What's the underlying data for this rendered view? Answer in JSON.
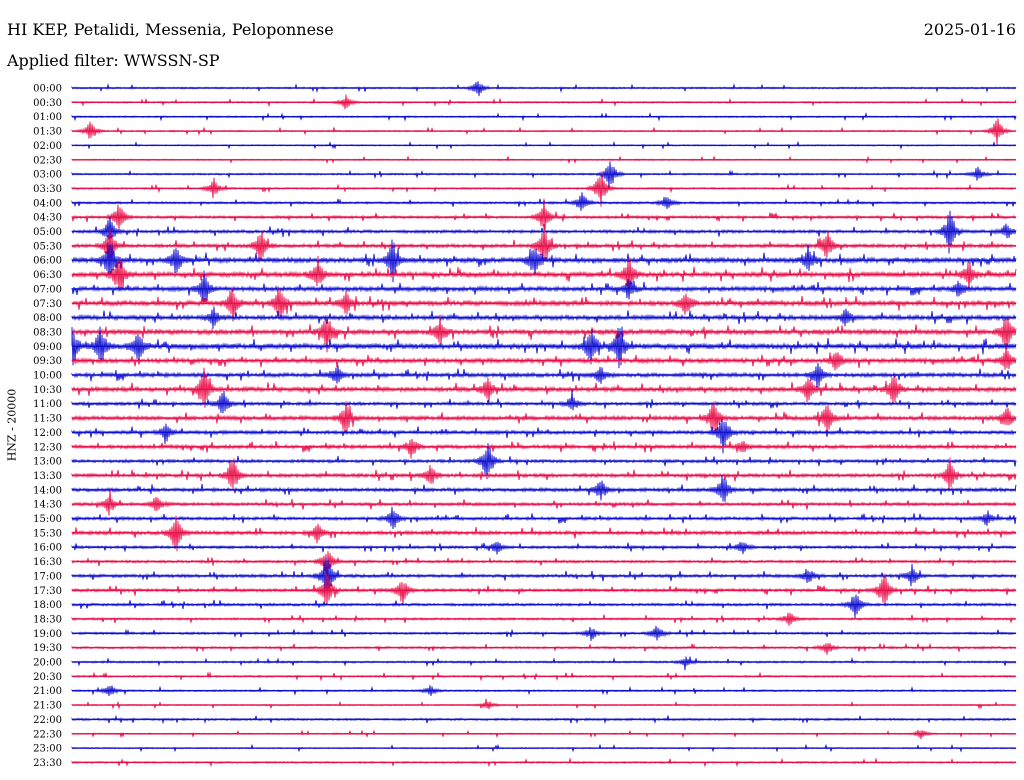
{
  "header": {
    "station": "HI KEP, Petalidi, Messenia, Peloponnese",
    "date": "2025-01-16",
    "filter": "Applied filter: WWSSN-SP"
  },
  "chart_data": {
    "type": "line",
    "title": "HI KEP, Petalidi, Messenia, Peloponnese",
    "subtitle": "Applied filter: WWSSN-SP",
    "date": "2025-01-16",
    "ylabel": "HNZ - 20000",
    "xlabel": "",
    "row_duration_minutes": 30,
    "colors": [
      "#1010d0",
      "#e8104a"
    ],
    "grid": false,
    "rows": [
      {
        "label": "00:00",
        "level": 0.2,
        "events": [
          {
            "at": 0.43,
            "amp": 0.5
          }
        ]
      },
      {
        "label": "00:30",
        "level": 0.15,
        "events": [
          {
            "at": 0.29,
            "amp": 0.4
          }
        ]
      },
      {
        "label": "01:00",
        "level": 0.15,
        "events": []
      },
      {
        "label": "01:30",
        "level": 0.15,
        "events": [
          {
            "at": 0.02,
            "amp": 0.6
          },
          {
            "at": 0.98,
            "amp": 0.8
          }
        ]
      },
      {
        "label": "02:00",
        "level": 0.1,
        "events": []
      },
      {
        "label": "02:30",
        "level": 0.1,
        "events": []
      },
      {
        "label": "03:00",
        "level": 0.2,
        "events": [
          {
            "at": 0.57,
            "amp": 0.9
          },
          {
            "at": 0.96,
            "amp": 0.4
          }
        ]
      },
      {
        "label": "03:30",
        "level": 0.2,
        "events": [
          {
            "at": 0.15,
            "amp": 0.6
          },
          {
            "at": 0.56,
            "amp": 1.2
          }
        ]
      },
      {
        "label": "04:00",
        "level": 0.3,
        "events": [
          {
            "at": 0.54,
            "amp": 0.7
          },
          {
            "at": 0.63,
            "amp": 0.5
          }
        ]
      },
      {
        "label": "04:30",
        "level": 0.4,
        "events": [
          {
            "at": 0.05,
            "amp": 0.9
          },
          {
            "at": 0.5,
            "amp": 0.9
          }
        ]
      },
      {
        "label": "05:00",
        "level": 0.5,
        "events": [
          {
            "at": 0.04,
            "amp": 0.8
          },
          {
            "at": 0.93,
            "amp": 1.3
          },
          {
            "at": 0.99,
            "amp": 0.5
          }
        ]
      },
      {
        "label": "05:30",
        "level": 0.6,
        "events": [
          {
            "at": 0.04,
            "amp": 1.0
          },
          {
            "at": 0.2,
            "amp": 1.0
          },
          {
            "at": 0.5,
            "amp": 1.2
          },
          {
            "at": 0.8,
            "amp": 0.8
          }
        ]
      },
      {
        "label": "06:00",
        "level": 0.9,
        "events": [
          {
            "at": 0.04,
            "amp": 1.3
          },
          {
            "at": 0.11,
            "amp": 0.8
          },
          {
            "at": 0.34,
            "amp": 1.3
          },
          {
            "at": 0.49,
            "amp": 1.0
          },
          {
            "at": 0.78,
            "amp": 0.7
          }
        ]
      },
      {
        "label": "06:30",
        "level": 0.9,
        "events": [
          {
            "at": 0.05,
            "amp": 1.2
          },
          {
            "at": 0.26,
            "amp": 1.0
          },
          {
            "at": 0.59,
            "amp": 1.0
          },
          {
            "at": 0.95,
            "amp": 0.8
          }
        ]
      },
      {
        "label": "07:00",
        "level": 0.8,
        "events": [
          {
            "at": 0.14,
            "amp": 0.9
          },
          {
            "at": 0.59,
            "amp": 0.6
          },
          {
            "at": 0.94,
            "amp": 0.5
          }
        ]
      },
      {
        "label": "07:30",
        "level": 0.9,
        "events": [
          {
            "at": 0.17,
            "amp": 1.0
          },
          {
            "at": 0.22,
            "amp": 1.1
          },
          {
            "at": 0.29,
            "amp": 0.7
          },
          {
            "at": 0.65,
            "amp": 0.8
          }
        ]
      },
      {
        "label": "08:00",
        "level": 0.8,
        "events": [
          {
            "at": 0.15,
            "amp": 0.6
          },
          {
            "at": 0.82,
            "amp": 0.5
          }
        ]
      },
      {
        "label": "08:30",
        "level": 0.9,
        "events": [
          {
            "at": 0.27,
            "amp": 1.0
          },
          {
            "at": 0.39,
            "amp": 0.8
          },
          {
            "at": 0.99,
            "amp": 1.0
          }
        ]
      },
      {
        "label": "09:00",
        "level": 1.0,
        "events": [
          {
            "at": 0.0,
            "amp": 1.3
          },
          {
            "at": 0.03,
            "amp": 1.2
          },
          {
            "at": 0.07,
            "amp": 1.0
          },
          {
            "at": 0.55,
            "amp": 1.2
          },
          {
            "at": 0.58,
            "amp": 1.3
          }
        ]
      },
      {
        "label": "09:30",
        "level": 0.8,
        "events": [
          {
            "at": 0.81,
            "amp": 0.6
          },
          {
            "at": 0.99,
            "amp": 0.7
          }
        ]
      },
      {
        "label": "10:00",
        "level": 0.7,
        "events": [
          {
            "at": 0.28,
            "amp": 0.6
          },
          {
            "at": 0.56,
            "amp": 0.5
          },
          {
            "at": 0.79,
            "amp": 0.8
          }
        ]
      },
      {
        "label": "10:30",
        "level": 0.8,
        "events": [
          {
            "at": 0.14,
            "amp": 1.2
          },
          {
            "at": 0.44,
            "amp": 0.7
          },
          {
            "at": 0.78,
            "amp": 0.8
          },
          {
            "at": 0.87,
            "amp": 1.0
          }
        ]
      },
      {
        "label": "11:00",
        "level": 0.5,
        "events": [
          {
            "at": 0.16,
            "amp": 0.8
          },
          {
            "at": 0.53,
            "amp": 0.5
          }
        ]
      },
      {
        "label": "11:30",
        "level": 0.7,
        "events": [
          {
            "at": 0.29,
            "amp": 1.0
          },
          {
            "at": 0.68,
            "amp": 1.2
          },
          {
            "at": 0.8,
            "amp": 1.1
          },
          {
            "at": 0.99,
            "amp": 0.7
          }
        ]
      },
      {
        "label": "12:00",
        "level": 0.6,
        "events": [
          {
            "at": 0.1,
            "amp": 0.5
          },
          {
            "at": 0.69,
            "amp": 1.1
          }
        ]
      },
      {
        "label": "12:30",
        "level": 0.6,
        "events": [
          {
            "at": 0.36,
            "amp": 0.7
          },
          {
            "at": 0.71,
            "amp": 0.4
          }
        ]
      },
      {
        "label": "13:00",
        "level": 0.5,
        "events": [
          {
            "at": 0.44,
            "amp": 1.3
          }
        ]
      },
      {
        "label": "13:30",
        "level": 0.6,
        "events": [
          {
            "at": 0.17,
            "amp": 1.2
          },
          {
            "at": 0.38,
            "amp": 0.6
          },
          {
            "at": 0.93,
            "amp": 0.9
          }
        ]
      },
      {
        "label": "14:00",
        "level": 0.6,
        "events": [
          {
            "at": 0.56,
            "amp": 0.7
          },
          {
            "at": 0.69,
            "amp": 1.0
          }
        ]
      },
      {
        "label": "14:30",
        "level": 0.5,
        "events": [
          {
            "at": 0.04,
            "amp": 0.6
          },
          {
            "at": 0.09,
            "amp": 0.5
          }
        ]
      },
      {
        "label": "15:00",
        "level": 0.5,
        "events": [
          {
            "at": 0.34,
            "amp": 0.7
          },
          {
            "at": 0.97,
            "amp": 0.4
          }
        ]
      },
      {
        "label": "15:30",
        "level": 0.6,
        "events": [
          {
            "at": 0.11,
            "amp": 1.2
          },
          {
            "at": 0.26,
            "amp": 0.6
          }
        ]
      },
      {
        "label": "16:00",
        "level": 0.4,
        "events": [
          {
            "at": 0.45,
            "amp": 0.4
          },
          {
            "at": 0.71,
            "amp": 0.4
          }
        ]
      },
      {
        "label": "16:30",
        "level": 0.4,
        "events": [
          {
            "at": 0.27,
            "amp": 0.8
          }
        ]
      },
      {
        "label": "17:00",
        "level": 0.5,
        "events": [
          {
            "at": 0.27,
            "amp": 1.4
          },
          {
            "at": 0.78,
            "amp": 0.5
          },
          {
            "at": 0.89,
            "amp": 0.6
          }
        ]
      },
      {
        "label": "17:30",
        "level": 0.5,
        "events": [
          {
            "at": 0.27,
            "amp": 1.0
          },
          {
            "at": 0.35,
            "amp": 0.8
          },
          {
            "at": 0.86,
            "amp": 1.1
          }
        ]
      },
      {
        "label": "18:00",
        "level": 0.4,
        "events": [
          {
            "at": 0.83,
            "amp": 0.8
          }
        ]
      },
      {
        "label": "18:30",
        "level": 0.3,
        "events": [
          {
            "at": 0.76,
            "amp": 0.4
          }
        ]
      },
      {
        "label": "19:00",
        "level": 0.3,
        "events": [
          {
            "at": 0.55,
            "amp": 0.4
          },
          {
            "at": 0.62,
            "amp": 0.5
          }
        ]
      },
      {
        "label": "19:30",
        "level": 0.3,
        "events": [
          {
            "at": 0.8,
            "amp": 0.4
          }
        ]
      },
      {
        "label": "20:00",
        "level": 0.25,
        "events": [
          {
            "at": 0.65,
            "amp": 0.3
          }
        ]
      },
      {
        "label": "20:30",
        "level": 0.2,
        "events": []
      },
      {
        "label": "21:00",
        "level": 0.2,
        "events": [
          {
            "at": 0.04,
            "amp": 0.4
          },
          {
            "at": 0.38,
            "amp": 0.3
          }
        ]
      },
      {
        "label": "21:30",
        "level": 0.1,
        "events": [
          {
            "at": 0.44,
            "amp": 0.3
          }
        ]
      },
      {
        "label": "22:00",
        "level": 0.3,
        "events": []
      },
      {
        "label": "22:30",
        "level": 0.1,
        "events": [
          {
            "at": 0.9,
            "amp": 0.3
          }
        ]
      },
      {
        "label": "23:00",
        "level": 0.1,
        "events": []
      },
      {
        "label": "23:30",
        "level": 0.2,
        "events": []
      }
    ]
  }
}
